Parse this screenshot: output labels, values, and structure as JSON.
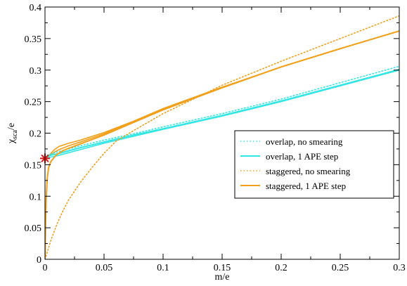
{
  "chart_data": {
    "type": "line",
    "title": "",
    "xlabel": "m/e",
    "ylabel": {
      "main": "χ",
      "sub": "sca",
      "tail": "/e"
    },
    "xlim": [
      0,
      0.3
    ],
    "ylim": [
      0,
      0.4
    ],
    "xticks": [
      "0",
      "0.05",
      "0.1",
      "0.15",
      "0.2",
      "0.25",
      "0.3"
    ],
    "yticks": [
      "0",
      "0.05",
      "0.1",
      "0.15",
      "0.2",
      "0.25",
      "0.3",
      "0.35",
      "0.4"
    ],
    "grid": false,
    "legend_position": "right-middle",
    "series": [
      {
        "name": "overlap, no smearing",
        "color": "#33e6e6",
        "style": "dotted",
        "x": [
          0,
          0.002,
          0.005,
          0.01,
          0.02,
          0.03,
          0.05,
          0.075,
          0.1,
          0.15,
          0.2,
          0.25,
          0.3
        ],
        "y": [
          0.162,
          0.165,
          0.167,
          0.17,
          0.175,
          0.18,
          0.189,
          0.199,
          0.21,
          0.231,
          0.254,
          0.28,
          0.306
        ]
      },
      {
        "name": "overlap, 1 APE step",
        "color": "#33e6e6",
        "style": "solid",
        "x": [
          0,
          0.002,
          0.005,
          0.01,
          0.02,
          0.03,
          0.05,
          0.075,
          0.1,
          0.15,
          0.2,
          0.25,
          0.3
        ],
        "y": [
          0.161,
          0.163,
          0.165,
          0.167,
          0.172,
          0.177,
          0.186,
          0.197,
          0.207,
          0.228,
          0.251,
          0.276,
          0.301
        ]
      },
      {
        "name": "staggered, no smearing",
        "color": "#f2a01a",
        "style": "dotted",
        "x": [
          0,
          0.002,
          0.005,
          0.01,
          0.015,
          0.02,
          0.03,
          0.04,
          0.05,
          0.06,
          0.075,
          0.1,
          0.15,
          0.2,
          0.25,
          0.3
        ],
        "y": [
          0.0,
          0.012,
          0.03,
          0.055,
          0.076,
          0.094,
          0.122,
          0.146,
          0.168,
          0.187,
          0.204,
          0.231,
          0.276,
          0.314,
          0.35,
          0.386
        ]
      },
      {
        "name": "staggered, 1 APE step",
        "color": "#f2a01a",
        "style": "solid",
        "x": [
          0,
          0.0005,
          0.001,
          0.002,
          0.003,
          0.005,
          0.008,
          0.01,
          0.015,
          0.02,
          0.03,
          0.05,
          0.075,
          0.1,
          0.15,
          0.2,
          0.25,
          0.3
        ],
        "y": [
          0.0,
          0.055,
          0.095,
          0.13,
          0.145,
          0.155,
          0.162,
          0.166,
          0.172,
          0.176,
          0.183,
          0.197,
          0.217,
          0.237,
          0.272,
          0.305,
          0.334,
          0.362
        ]
      }
    ],
    "extra_orange_curves": [
      {
        "x": [
          0,
          0.003,
          0.008,
          0.012,
          0.02,
          0.03,
          0.05,
          0.075,
          0.1,
          0.15,
          0.2,
          0.25,
          0.3
        ],
        "y": [
          0.16,
          0.163,
          0.17,
          0.174,
          0.18,
          0.186,
          0.199,
          0.218,
          0.238,
          0.272,
          0.305,
          0.334,
          0.362
        ]
      },
      {
        "x": [
          0,
          0.003,
          0.008,
          0.012,
          0.02,
          0.03,
          0.05,
          0.075,
          0.1,
          0.15,
          0.2,
          0.25,
          0.3
        ],
        "y": [
          0.16,
          0.164,
          0.174,
          0.179,
          0.184,
          0.189,
          0.201,
          0.219,
          0.239,
          0.273,
          0.305,
          0.334,
          0.362
        ]
      }
    ],
    "extra_cyan_curves": [
      {
        "x": [
          0,
          0.005,
          0.01,
          0.02,
          0.03,
          0.05,
          0.1,
          0.15,
          0.2,
          0.25,
          0.3
        ],
        "y": [
          0.16,
          0.162,
          0.164,
          0.169,
          0.174,
          0.184,
          0.206,
          0.227,
          0.25,
          0.275,
          0.3
        ]
      }
    ],
    "marker": {
      "x": 0,
      "y": 0.16,
      "symbol": "star",
      "color": "#e01010"
    }
  }
}
